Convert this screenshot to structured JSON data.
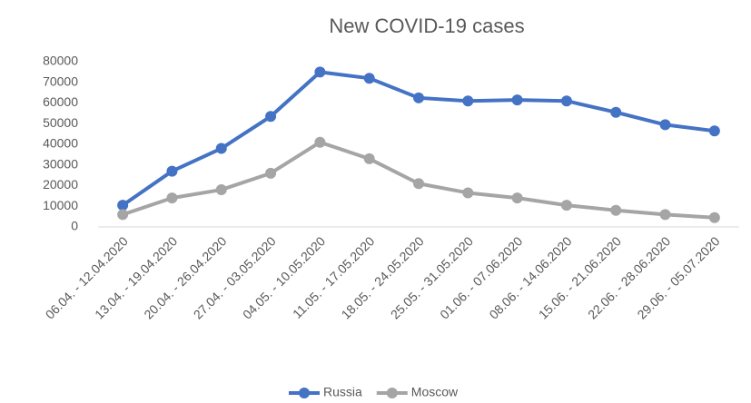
{
  "chart_data": {
    "type": "line",
    "title": "New COVID-19 cases",
    "categories": [
      "06.04. - 12.04.2020",
      "13.04. - 19.04.2020",
      "20.04. - 26.04.2020",
      "27.04. - 03.05.2020",
      "04.05. - 10.05.2020",
      "11.05. - 17.05.2020",
      "18.05. - 24.05.2020",
      "25.05. - 31.05.2020",
      "01.06. - 07.06.2020",
      "08.06. - 14.06.2020",
      "15.06. - 21.06.2020",
      "22.06. - 28.06.2020",
      "29.06. - 05.07.2020"
    ],
    "series": [
      {
        "name": "Russia",
        "color": "#4472c4",
        "values": [
          10500,
          27000,
          38000,
          53500,
          75000,
          72000,
          62500,
          61000,
          61500,
          61000,
          55500,
          49500,
          46500
        ]
      },
      {
        "name": "Moscow",
        "color": "#a5a5a5",
        "values": [
          6000,
          14000,
          18000,
          26000,
          41000,
          33000,
          21000,
          16500,
          14000,
          10500,
          8000,
          6000,
          4500
        ]
      }
    ],
    "ylim": [
      0,
      80000
    ],
    "yticks": [
      0,
      10000,
      20000,
      30000,
      40000,
      50000,
      60000,
      70000,
      80000
    ],
    "grid": false,
    "legend": "bottom"
  }
}
